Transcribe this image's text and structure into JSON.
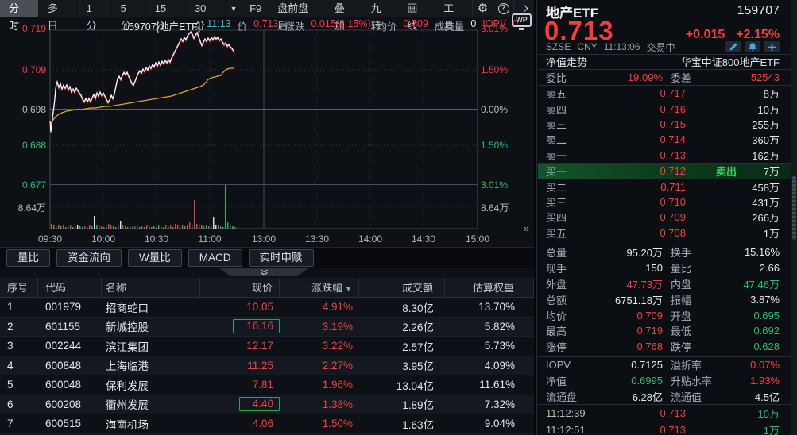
{
  "colors": {
    "red": "#f23c3e",
    "green": "#1ec077",
    "yellow_avg_line": "#dfa23b",
    "teal": "#2bc1cf",
    "icon_blue": "#42a8f0",
    "selected_tab_bg": "#4a4f56"
  },
  "toolbar": {
    "left_tabs": [
      {
        "label": "分时",
        "selected": true
      },
      {
        "label": "多日",
        "selected": false
      },
      {
        "label": "1分",
        "selected": false
      },
      {
        "label": "5分",
        "selected": false
      },
      {
        "label": "15分",
        "selected": false
      },
      {
        "label": "30分",
        "selected": false
      }
    ],
    "dropdown_icon": "▼",
    "right_items": [
      "F9",
      "盘前盘后",
      "叠加",
      "九转",
      "画线",
      "工具"
    ],
    "icons": [
      "gear-icon",
      "help-icon",
      "chevron-right-icon"
    ]
  },
  "chart": {
    "info_items": [
      {
        "t": "159707[地产ETF]",
        "c": "w"
      },
      {
        "t": "11:13",
        "c": "teal"
      },
      {
        "t": "价",
        "c": "lbl"
      },
      {
        "t": "0.713",
        "c": "red"
      },
      {
        "t": "涨跌",
        "c": "lbl"
      },
      {
        "t": "0.015(2.15%)",
        "c": "red"
      },
      {
        "t": "均价",
        "c": "lbl"
      },
      {
        "t": "0.709",
        "c": "red"
      },
      {
        "t": "成交量",
        "c": "lbl"
      },
      {
        "t": "0",
        "c": "w"
      },
      {
        "t": "IOPV",
        "c": "red"
      },
      {
        "t": "0",
        "c": "red"
      }
    ],
    "wp_badge": "WP",
    "left_axis": [
      {
        "t": "0.719",
        "c": "red"
      },
      {
        "t": "0.709",
        "c": "red"
      },
      {
        "t": "0.698",
        "c": "gray"
      },
      {
        "t": "0.688",
        "c": "green"
      },
      {
        "t": "0.677",
        "c": "green"
      },
      {
        "t": "8.64万",
        "c": "gray"
      }
    ],
    "right_axis": [
      {
        "t": "3.01%",
        "c": "red"
      },
      {
        "t": "1.50%",
        "c": "red"
      },
      {
        "t": "0.00%",
        "c": "gray"
      },
      {
        "t": "1.50%",
        "c": "green"
      },
      {
        "t": "3.01%",
        "c": "green"
      },
      {
        "t": "8.64万",
        "c": "gray"
      }
    ],
    "time_labels": [
      "09:30",
      "10:00",
      "10:30",
      "11:00",
      "13:00",
      "13:30",
      "14:00",
      "14:30",
      "15:00"
    ],
    "price_line": [
      [
        63,
        152
      ],
      [
        64,
        166
      ],
      [
        65,
        158
      ],
      [
        66,
        149
      ],
      [
        67,
        141
      ],
      [
        68,
        133
      ],
      [
        69,
        124
      ],
      [
        70,
        112
      ],
      [
        71,
        106
      ],
      [
        72,
        103
      ],
      [
        74,
        110
      ],
      [
        76,
        105
      ],
      [
        78,
        112
      ],
      [
        80,
        107
      ],
      [
        82,
        111
      ],
      [
        84,
        107
      ],
      [
        86,
        113
      ],
      [
        88,
        109
      ],
      [
        90,
        116
      ],
      [
        92,
        112
      ],
      [
        94,
        116
      ],
      [
        96,
        111
      ],
      [
        98,
        114
      ],
      [
        100,
        117
      ],
      [
        102,
        120
      ],
      [
        104,
        125
      ],
      [
        106,
        128
      ],
      [
        108,
        124
      ],
      [
        110,
        128
      ],
      [
        112,
        124
      ],
      [
        114,
        128
      ],
      [
        116,
        123
      ],
      [
        118,
        119
      ],
      [
        120,
        124
      ],
      [
        122,
        117
      ],
      [
        124,
        121
      ],
      [
        126,
        116
      ],
      [
        128,
        120
      ],
      [
        130,
        117
      ],
      [
        132,
        121
      ],
      [
        134,
        125
      ],
      [
        136,
        129
      ],
      [
        138,
        126
      ],
      [
        140,
        120
      ],
      [
        142,
        124
      ],
      [
        144,
        118
      ],
      [
        146,
        108
      ],
      [
        148,
        99
      ],
      [
        150,
        96
      ],
      [
        152,
        100
      ],
      [
        154,
        95
      ],
      [
        156,
        91
      ],
      [
        158,
        94
      ],
      [
        160,
        91
      ],
      [
        162,
        96
      ],
      [
        164,
        100
      ],
      [
        166,
        105
      ],
      [
        168,
        107
      ],
      [
        170,
        102
      ],
      [
        172,
        97
      ],
      [
        174,
        92
      ],
      [
        176,
        89
      ],
      [
        178,
        92
      ],
      [
        180,
        87
      ],
      [
        182,
        90
      ],
      [
        184,
        85
      ],
      [
        186,
        88
      ],
      [
        188,
        83
      ],
      [
        190,
        86
      ],
      [
        192,
        81
      ],
      [
        194,
        84
      ],
      [
        196,
        79
      ],
      [
        198,
        83
      ],
      [
        200,
        78
      ],
      [
        202,
        82
      ],
      [
        204,
        77
      ],
      [
        206,
        80
      ],
      [
        208,
        76
      ],
      [
        210,
        79
      ],
      [
        212,
        75
      ],
      [
        214,
        78
      ],
      [
        216,
        73
      ],
      [
        218,
        69
      ],
      [
        220,
        65
      ],
      [
        222,
        61
      ],
      [
        224,
        57
      ],
      [
        226,
        53
      ],
      [
        228,
        49
      ],
      [
        230,
        52
      ],
      [
        232,
        47
      ],
      [
        234,
        50
      ],
      [
        236,
        45
      ],
      [
        238,
        42
      ],
      [
        240,
        40
      ],
      [
        242,
        43
      ],
      [
        244,
        48
      ],
      [
        246,
        44
      ],
      [
        248,
        41
      ],
      [
        250,
        46
      ],
      [
        252,
        52
      ],
      [
        254,
        57
      ],
      [
        256,
        53
      ],
      [
        258,
        49
      ],
      [
        260,
        52
      ],
      [
        262,
        48
      ],
      [
        264,
        51
      ],
      [
        266,
        47
      ],
      [
        268,
        50
      ],
      [
        270,
        46
      ],
      [
        272,
        49
      ],
      [
        274,
        47
      ],
      [
        276,
        51
      ],
      [
        278,
        49
      ],
      [
        280,
        53
      ],
      [
        282,
        56
      ],
      [
        284,
        54
      ],
      [
        286,
        58
      ],
      [
        288,
        56
      ],
      [
        290,
        59
      ],
      [
        292,
        61
      ],
      [
        294,
        64
      ],
      [
        295,
        66
      ]
    ],
    "avg_line": [
      [
        63,
        158
      ],
      [
        66,
        152
      ],
      [
        70,
        147
      ],
      [
        74,
        144
      ],
      [
        78,
        142
      ],
      [
        84,
        140
      ],
      [
        90,
        139
      ],
      [
        96,
        138
      ],
      [
        102,
        138
      ],
      [
        108,
        137
      ],
      [
        114,
        136
      ],
      [
        120,
        136
      ],
      [
        126,
        135
      ],
      [
        132,
        134
      ],
      [
        138,
        134
      ],
      [
        144,
        133
      ],
      [
        150,
        132
      ],
      [
        156,
        131
      ],
      [
        162,
        130
      ],
      [
        168,
        129
      ],
      [
        174,
        128
      ],
      [
        180,
        127
      ],
      [
        186,
        126
      ],
      [
        192,
        125
      ],
      [
        198,
        124
      ],
      [
        204,
        123
      ],
      [
        210,
        122
      ],
      [
        216,
        121
      ],
      [
        222,
        119
      ],
      [
        228,
        117
      ],
      [
        234,
        115
      ],
      [
        240,
        113
      ],
      [
        246,
        111
      ],
      [
        252,
        109
      ],
      [
        256,
        107
      ],
      [
        259,
        104
      ],
      [
        262,
        100
      ],
      [
        266,
        98
      ],
      [
        270,
        97
      ],
      [
        274,
        96
      ],
      [
        278,
        95
      ],
      [
        280,
        92
      ],
      [
        283,
        89
      ],
      [
        286,
        87
      ],
      [
        290,
        86
      ],
      [
        295,
        86
      ]
    ],
    "volume_bars": [
      [
        6,
        "r"
      ],
      [
        4,
        "g"
      ],
      [
        3,
        "r"
      ],
      [
        5,
        "r"
      ],
      [
        3,
        "g"
      ],
      [
        4,
        "r"
      ],
      [
        2,
        "g"
      ],
      [
        3,
        "g"
      ],
      [
        4,
        "r"
      ],
      [
        2,
        "g"
      ],
      [
        3,
        "r"
      ],
      [
        5,
        "w"
      ],
      [
        3,
        "g"
      ],
      [
        2,
        "g"
      ],
      [
        3,
        "r"
      ],
      [
        2,
        "g"
      ],
      [
        4,
        "r"
      ],
      [
        3,
        "g"
      ],
      [
        16,
        "w"
      ],
      [
        5,
        "g"
      ],
      [
        4,
        "g"
      ],
      [
        3,
        "r"
      ],
      [
        2,
        "g"
      ],
      [
        3,
        "g"
      ],
      [
        6,
        "r"
      ],
      [
        4,
        "r"
      ],
      [
        3,
        "g"
      ],
      [
        2,
        "g"
      ],
      [
        4,
        "r"
      ],
      [
        10,
        "w"
      ],
      [
        4,
        "r"
      ],
      [
        3,
        "g"
      ],
      [
        2,
        "g"
      ],
      [
        3,
        "r"
      ],
      [
        2,
        "g"
      ],
      [
        3,
        "r"
      ],
      [
        4,
        "g"
      ],
      [
        2,
        "g"
      ],
      [
        3,
        "r"
      ],
      [
        2,
        "g"
      ],
      [
        4,
        "r"
      ],
      [
        3,
        "g"
      ],
      [
        2,
        "r"
      ],
      [
        3,
        "g"
      ],
      [
        2,
        "r"
      ],
      [
        4,
        "g"
      ],
      [
        3,
        "r"
      ],
      [
        2,
        "g"
      ],
      [
        5,
        "r"
      ],
      [
        3,
        "g"
      ],
      [
        4,
        "r"
      ],
      [
        2,
        "g"
      ],
      [
        6,
        "r"
      ],
      [
        4,
        "r"
      ],
      [
        3,
        "g"
      ],
      [
        5,
        "r"
      ],
      [
        3,
        "g"
      ],
      [
        4,
        "r"
      ],
      [
        8,
        "r"
      ],
      [
        5,
        "g"
      ],
      [
        36,
        "r"
      ],
      [
        6,
        "r"
      ],
      [
        4,
        "g"
      ],
      [
        5,
        "g"
      ],
      [
        3,
        "r"
      ],
      [
        4,
        "g"
      ],
      [
        3,
        "r"
      ],
      [
        3,
        "g"
      ],
      [
        14,
        "w"
      ],
      [
        5,
        "w"
      ],
      [
        4,
        "g"
      ],
      [
        3,
        "r"
      ],
      [
        2,
        "g"
      ],
      [
        55,
        "g"
      ],
      [
        8,
        "g"
      ],
      [
        4,
        "g"
      ],
      [
        3,
        "g"
      ],
      [
        2,
        "g"
      ]
    ]
  },
  "bottom_tabs": [
    "量比",
    "资金流向",
    "W量比",
    "MACD",
    "实时申赎"
  ],
  "table": {
    "headers": [
      "序号",
      "代码",
      "名称",
      "现价",
      "涨跌幅",
      "成交额",
      "估算权重"
    ],
    "sort_col_index": 4,
    "sort_icon": "▼",
    "rows": [
      {
        "no": "1",
        "code": "001979",
        "name": "招商蛇口",
        "price": "10.05",
        "chg": "4.91%",
        "amount": "8.30亿",
        "weight": "13.70%",
        "boxed": false
      },
      {
        "no": "2",
        "code": "601155",
        "name": "新城控股",
        "price": "16.16",
        "chg": "3.19%",
        "amount": "2.26亿",
        "weight": "5.82%",
        "boxed": true
      },
      {
        "no": "3",
        "code": "002244",
        "name": "滨江集团",
        "price": "12.17",
        "chg": "3.22%",
        "amount": "2.57亿",
        "weight": "5.73%",
        "boxed": false
      },
      {
        "no": "4",
        "code": "600848",
        "name": "上海临港",
        "price": "11.25",
        "chg": "2.27%",
        "amount": "3.95亿",
        "weight": "4.09%",
        "boxed": false
      },
      {
        "no": "5",
        "code": "600048",
        "name": "保利发展",
        "price": "7.81",
        "chg": "1.96%",
        "amount": "13.04亿",
        "weight": "11.61%",
        "boxed": false
      },
      {
        "no": "6",
        "code": "600208",
        "name": "衢州发展",
        "price": "4.40",
        "chg": "1.38%",
        "amount": "1.89亿",
        "weight": "7.32%",
        "boxed": true
      },
      {
        "no": "7",
        "code": "600515",
        "name": "海南机场",
        "price": "4.06",
        "chg": "1.50%",
        "amount": "1.63亿",
        "weight": "9.04%",
        "boxed": false
      }
    ]
  },
  "panel": {
    "name": "地产ETF",
    "code": "159707",
    "price": "0.713",
    "change": "+0.015",
    "change_pct": "+2.15%",
    "exchange": "SZSE",
    "currency": "CNY",
    "time": "11:13:06",
    "status": "交易中",
    "nav_label": "净值走势",
    "full_name": "华宝中证800地产ETF",
    "weibi_label": "委比",
    "weibi": "19.09%",
    "weicha_label": "委差",
    "weicha": "52543",
    "asks": [
      {
        "label": "卖五",
        "price": "0.717",
        "vol": "8万"
      },
      {
        "label": "卖四",
        "price": "0.716",
        "vol": "10万"
      },
      {
        "label": "卖三",
        "price": "0.715",
        "vol": "255万"
      },
      {
        "label": "卖二",
        "price": "0.714",
        "vol": "360万"
      },
      {
        "label": "卖一",
        "price": "0.713",
        "vol": "162万"
      }
    ],
    "bids": [
      {
        "label": "买一",
        "price": "0.712",
        "tag": "卖出",
        "vol": "7万",
        "highlight": true
      },
      {
        "label": "买二",
        "price": "0.711",
        "tag": "",
        "vol": "458万",
        "highlight": false
      },
      {
        "label": "买三",
        "price": "0.710",
        "tag": "",
        "vol": "431万",
        "highlight": false
      },
      {
        "label": "买四",
        "price": "0.709",
        "tag": "",
        "vol": "266万",
        "highlight": false
      },
      {
        "label": "买五",
        "price": "0.708",
        "tag": "",
        "vol": "1万",
        "highlight": false
      }
    ],
    "stats": [
      {
        "l1": "总量",
        "v1": "95.20万",
        "c1": "white",
        "l2": "换手",
        "v2": "15.16%",
        "c2": "white"
      },
      {
        "l1": "现手",
        "v1": "150",
        "c1": "white",
        "l2": "量比",
        "v2": "2.66",
        "c2": "white"
      },
      {
        "l1": "外盘",
        "v1": "47.73万",
        "c1": "red",
        "l2": "内盘",
        "v2": "47.46万",
        "c2": "green"
      },
      {
        "l1": "总额",
        "v1": "6751.18万",
        "c1": "white",
        "l2": "振幅",
        "v2": "3.87%",
        "c2": "white"
      },
      {
        "l1": "均价",
        "v1": "0.709",
        "c1": "red",
        "l2": "开盘",
        "v2": "0.695",
        "c2": "green"
      },
      {
        "l1": "最高",
        "v1": "0.719",
        "c1": "red",
        "l2": "最低",
        "v2": "0.692",
        "c2": "green"
      },
      {
        "l1": "涨停",
        "v1": "0.768",
        "c1": "red",
        "l2": "跌停",
        "v2": "0.628",
        "c2": "green"
      }
    ],
    "stats2": [
      {
        "l1": "IOPV",
        "v1": "0.7125",
        "c1": "white",
        "l2": "溢折率",
        "v2": "0.07%",
        "c2": "red"
      },
      {
        "l1": "净值",
        "v1": "0.6995",
        "c1": "green",
        "l2": "升贴水率",
        "v2": "1.93%",
        "c2": "red"
      },
      {
        "l1": "流通盘",
        "v1": "6.28亿",
        "c1": "white",
        "l2": "流通值",
        "v2": "4.5亿",
        "c2": "white"
      }
    ],
    "ticks": [
      {
        "time": "11:12:39",
        "price": "0.713",
        "vol": "10万"
      },
      {
        "time": "11:12:51",
        "price": "0.713",
        "vol": "1万"
      }
    ]
  }
}
